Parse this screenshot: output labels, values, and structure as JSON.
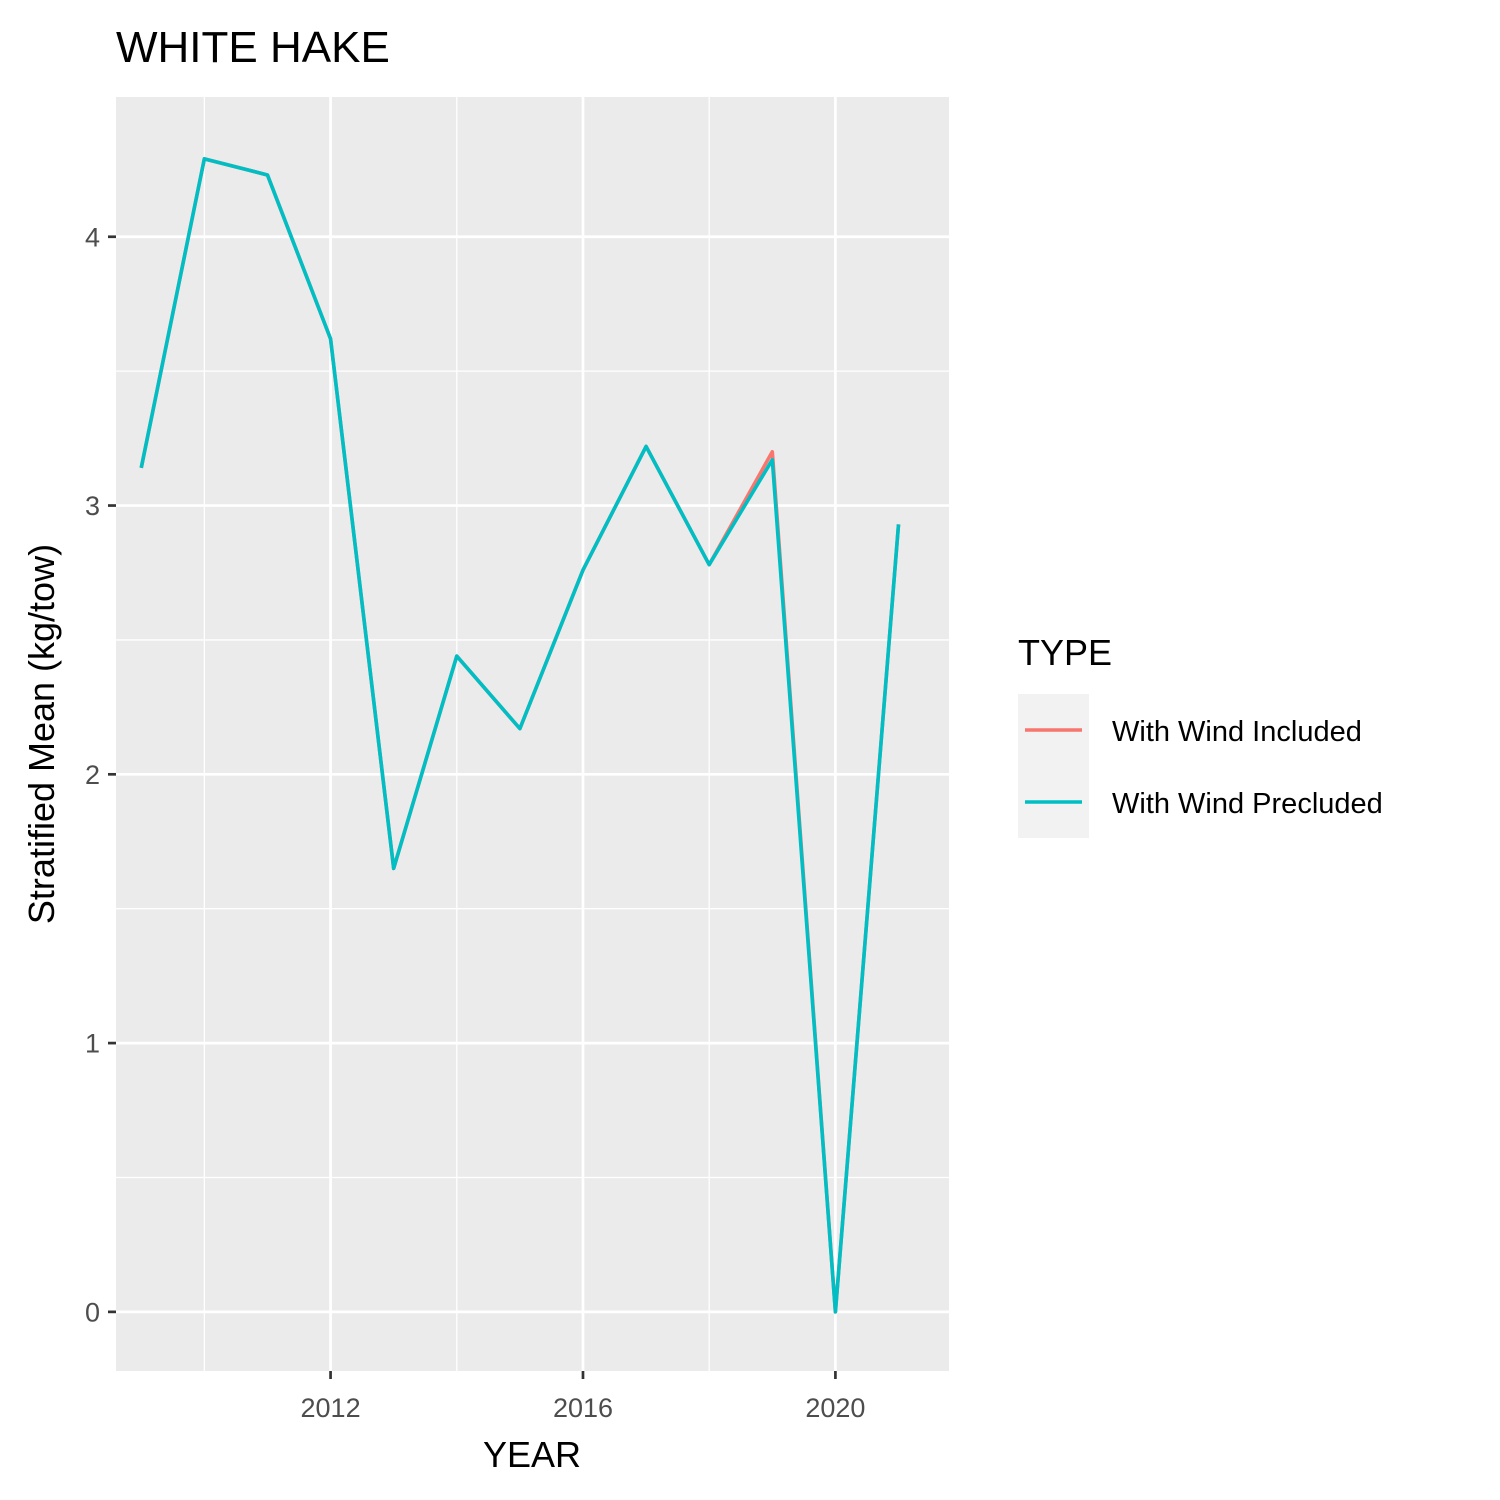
{
  "chart_data": {
    "type": "line",
    "title": "WHITE HAKE",
    "xlabel": "YEAR",
    "ylabel": "Stratified Mean (kg/tow)",
    "xlim": [
      2008.6,
      2021.8
    ],
    "ylim": [
      -0.22,
      4.52
    ],
    "x_ticks": [
      2012,
      2016,
      2020
    ],
    "x_tick_labels": [
      "2012",
      "2016",
      "2020"
    ],
    "x_minor_ticks": [
      2010,
      2014,
      2018
    ],
    "y_ticks": [
      0,
      1,
      2,
      3,
      4
    ],
    "y_tick_labels": [
      "0",
      "1",
      "2",
      "3",
      "4"
    ],
    "y_minor_ticks": [
      0.5,
      1.5,
      2.5,
      3.5
    ],
    "grid": true,
    "legend": {
      "title": "TYPE",
      "position": "right"
    },
    "x": [
      2009,
      2010,
      2011,
      2012,
      2013,
      2014,
      2015,
      2016,
      2017,
      2018,
      2019,
      2020,
      2021
    ],
    "series": [
      {
        "name": "With Wind Included",
        "color": "#F8766D",
        "values": [
          3.14,
          4.29,
          4.23,
          3.62,
          1.65,
          2.44,
          2.17,
          2.76,
          3.22,
          2.78,
          3.2,
          0.0,
          2.93
        ]
      },
      {
        "name": "With Wind Precluded",
        "color": "#00BFC4",
        "values": [
          3.14,
          4.29,
          4.23,
          3.62,
          1.65,
          2.44,
          2.17,
          2.76,
          3.22,
          2.78,
          3.17,
          0.0,
          2.93
        ]
      }
    ],
    "colors": {
      "panel_background": "#EBEBEB",
      "grid_major": "#FFFFFF",
      "legend_key_background": "#F2F2F2",
      "tick_text": "#4D4D4D",
      "tick_mark": "#333333"
    }
  }
}
